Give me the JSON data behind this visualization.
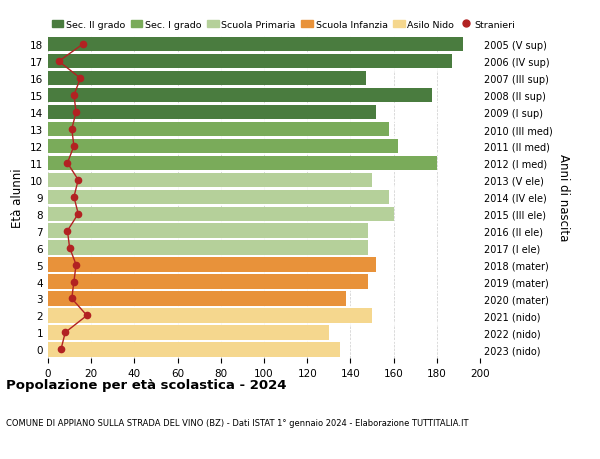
{
  "ages": [
    0,
    1,
    2,
    3,
    4,
    5,
    6,
    7,
    8,
    9,
    10,
    11,
    12,
    13,
    14,
    15,
    16,
    17,
    18
  ],
  "bar_values": [
    135,
    130,
    150,
    138,
    148,
    152,
    148,
    148,
    160,
    158,
    150,
    180,
    162,
    158,
    152,
    178,
    147,
    187,
    192
  ],
  "stranieri": [
    6,
    8,
    18,
    11,
    12,
    13,
    10,
    9,
    14,
    12,
    14,
    9,
    12,
    11,
    13,
    12,
    15,
    5,
    16
  ],
  "right_labels": [
    "2023 (nido)",
    "2022 (nido)",
    "2021 (nido)",
    "2020 (mater)",
    "2019 (mater)",
    "2018 (mater)",
    "2017 (I ele)",
    "2016 (II ele)",
    "2015 (III ele)",
    "2014 (IV ele)",
    "2013 (V ele)",
    "2012 (I med)",
    "2011 (II med)",
    "2010 (III med)",
    "2009 (I sup)",
    "2008 (II sup)",
    "2007 (III sup)",
    "2006 (IV sup)",
    "2005 (V sup)"
  ],
  "bar_colors": [
    "#f5d78e",
    "#f5d78e",
    "#f5d78e",
    "#e8923a",
    "#e8923a",
    "#e8923a",
    "#b5d09a",
    "#b5d09a",
    "#b5d09a",
    "#b5d09a",
    "#b5d09a",
    "#7aab5a",
    "#7aab5a",
    "#7aab5a",
    "#4a7c3f",
    "#4a7c3f",
    "#4a7c3f",
    "#4a7c3f",
    "#4a7c3f"
  ],
  "legend_labels": [
    "Sec. II grado",
    "Sec. I grado",
    "Scuola Primaria",
    "Scuola Infanzia",
    "Asilo Nido",
    "Stranieri"
  ],
  "legend_colors": [
    "#4a7c3f",
    "#7aab5a",
    "#b5d09a",
    "#e8923a",
    "#f5d78e",
    "#b22222"
  ],
  "stranieri_color": "#b22222",
  "stranieri_line_color": "#b22222",
  "ylabel_left": "Età alunni",
  "ylabel_right": "Anni di nascita",
  "title": "Popolazione per età scolastica - 2024",
  "subtitle": "COMUNE DI APPIANO SULLA STRADA DEL VINO (BZ) - Dati ISTAT 1° gennaio 2024 - Elaborazione TUTTITALIA.IT",
  "xlim": [
    0,
    200
  ],
  "xticks": [
    0,
    20,
    40,
    60,
    80,
    100,
    120,
    140,
    160,
    180,
    200
  ],
  "bg_color": "#ffffff",
  "bar_height": 0.85
}
